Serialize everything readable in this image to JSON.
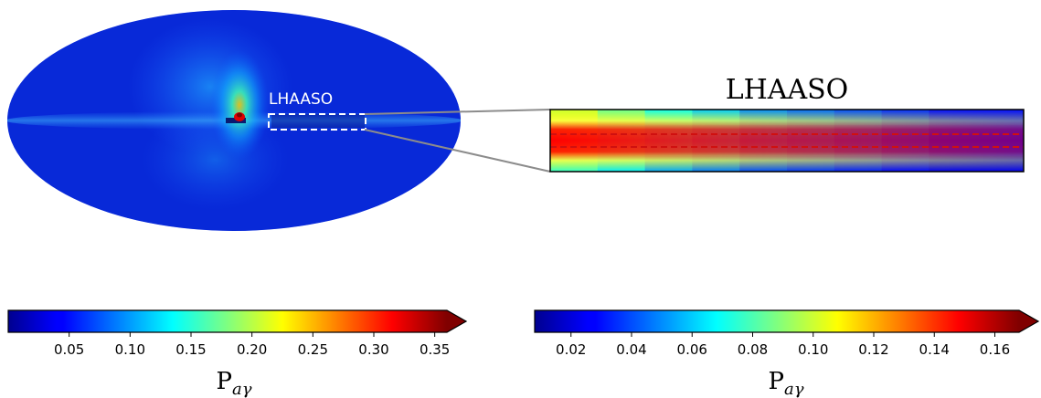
{
  "chart_data": [
    {
      "type": "heatmap",
      "projection": "mollweide",
      "annotation": "LHAASO",
      "colormap": "jet",
      "colorbar": {
        "label_main": "P",
        "label_sub": "aγ",
        "range": [
          0.0,
          0.36
        ],
        "extend": "max",
        "ticks": [
          0.05,
          0.1,
          0.15,
          0.2,
          0.25,
          0.3,
          0.35
        ],
        "tick_labels": [
          "0.05",
          "0.10",
          "0.15",
          "0.20",
          "0.25",
          "0.30",
          "0.35"
        ]
      }
    },
    {
      "type": "heatmap",
      "title": "LHAASO",
      "colormap": "jet",
      "column_values": [
        0.1,
        0.085,
        0.07,
        0.06,
        0.05,
        0.045,
        0.04,
        0.035,
        0.03,
        0.03
      ],
      "band_peak": 0.165,
      "colorbar": {
        "label_main": "P",
        "label_sub": "aγ",
        "range": [
          0.008,
          0.168
        ],
        "extend": "max",
        "ticks": [
          0.02,
          0.04,
          0.06,
          0.08,
          0.1,
          0.12,
          0.14,
          0.16
        ],
        "tick_labels": [
          "0.02",
          "0.04",
          "0.06",
          "0.08",
          "0.10",
          "0.12",
          "0.14",
          "0.16"
        ]
      }
    }
  ]
}
